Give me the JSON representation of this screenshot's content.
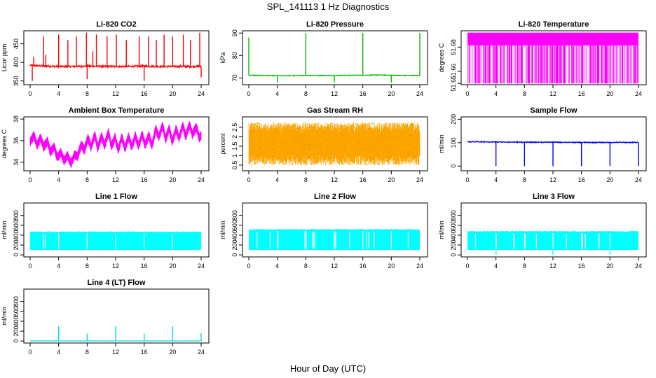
{
  "figure": {
    "title": "SPL_141113  1 Hz Diagnostics",
    "xlabel": "Hour of Day (UTC)"
  },
  "chart_data": [
    {
      "type": "line",
      "title": "Li-820 CO2",
      "ylabel": "Licor ppm",
      "ylim": [
        340,
        485
      ],
      "yticks": [
        350,
        400,
        450
      ],
      "xlim": [
        0,
        24
      ],
      "xticks": [
        0,
        4,
        8,
        12,
        16,
        20,
        24
      ],
      "color": "#ff0000",
      "style": "line",
      "baseline": 390,
      "noise": 2.5,
      "spikes": [
        [
          0.3,
          350
        ],
        [
          0.5,
          415
        ],
        [
          1.9,
          470
        ],
        [
          2.2,
          420
        ],
        [
          4.0,
          475
        ],
        [
          5.3,
          460
        ],
        [
          6.5,
          470
        ],
        [
          7.9,
          480
        ],
        [
          8.0,
          355
        ],
        [
          8.8,
          430
        ],
        [
          9.3,
          475
        ],
        [
          10.8,
          470
        ],
        [
          12.1,
          475
        ],
        [
          13.5,
          460
        ],
        [
          15.3,
          470
        ],
        [
          16.0,
          350
        ],
        [
          16.6,
          470
        ],
        [
          17.7,
          460
        ],
        [
          18.8,
          475
        ],
        [
          20.0,
          470
        ],
        [
          21.5,
          475
        ],
        [
          22.5,
          460
        ],
        [
          23.8,
          480
        ],
        [
          24.0,
          360
        ]
      ],
      "x": [
        0,
        2,
        4,
        6,
        8,
        10,
        12,
        14,
        16,
        18,
        20,
        22,
        24
      ],
      "y": [
        392,
        390,
        389,
        389,
        390,
        389,
        389,
        389,
        390,
        389,
        389,
        389,
        389
      ]
    },
    {
      "type": "line",
      "title": "Li-820 Pressure",
      "ylabel": "kPa",
      "ylim": [
        67,
        91
      ],
      "yticks": [
        70,
        80,
        90
      ],
      "xlim": [
        0,
        24
      ],
      "xticks": [
        0,
        4,
        8,
        12,
        16,
        20,
        24
      ],
      "color": "#00bb00",
      "style": "line",
      "baseline": 71,
      "noise": 0.15,
      "spikes": [
        [
          0.0,
          88
        ],
        [
          4.0,
          68
        ],
        [
          8.0,
          90
        ],
        [
          12.0,
          68
        ],
        [
          16.0,
          90
        ],
        [
          20.0,
          68
        ],
        [
          24.0,
          90
        ]
      ],
      "x": [
        0,
        2,
        4,
        6,
        8,
        10,
        12,
        14,
        16,
        18,
        20,
        22,
        24
      ],
      "y": [
        71.2,
        71.1,
        71.0,
        71.0,
        71.1,
        71.1,
        71.1,
        71.2,
        71.2,
        71.3,
        71.2,
        71.1,
        71.1
      ]
    },
    {
      "type": "line",
      "title": "Li-820 Temperature",
      "ylabel": "degrees C",
      "ylim": [
        51.649,
        51.6935
      ],
      "yticks": [
        51.65,
        51.66,
        51.68
      ],
      "xlim": [
        0,
        24
      ],
      "xticks": [
        0,
        4,
        8,
        12,
        16,
        20,
        24
      ],
      "color": "#ff00ff",
      "style": "band",
      "band_low": 51.65,
      "band_high": 51.692,
      "solid_from": 51.6815,
      "gap_rate": 0.45,
      "x": [
        0,
        24
      ],
      "y": [
        51.65,
        51.692
      ]
    },
    {
      "type": "line",
      "title": "Ambient Box Temperature",
      "ylabel": "degrees C",
      "ylim": [
        33.2,
        38.2
      ],
      "yticks": [
        34,
        36,
        38
      ],
      "xlim": [
        0,
        24
      ],
      "xticks": [
        0,
        4,
        8,
        12,
        16,
        20,
        24
      ],
      "color": "#ff00ff",
      "style": "sawtooth",
      "sawtooth_period_h": 0.95,
      "x": [
        0,
        1,
        2,
        3,
        4,
        5,
        6,
        7,
        8,
        9,
        10,
        11,
        12,
        13,
        14,
        15,
        16,
        17,
        18,
        19,
        20,
        21,
        22,
        23,
        24
      ],
      "y": [
        36.3,
        36.0,
        35.8,
        35.3,
        34.7,
        34.4,
        34.2,
        35.2,
        35.8,
        36.0,
        35.9,
        36.3,
        35.7,
        35.8,
        35.9,
        36.0,
        36.1,
        36.0,
        36.9,
        36.8,
        36.4,
        36.8,
        37.0,
        37.0,
        36.6
      ],
      "amp": [
        0.8,
        0.8,
        0.8,
        0.8,
        0.7,
        0.7,
        0.6,
        0.6,
        0.9,
        1.2,
        1.1,
        1.0,
        1.2,
        1.1,
        1.0,
        1.0,
        1.0,
        1.0,
        1.2,
        1.2,
        1.0,
        1.2,
        1.0,
        0.9,
        0.9
      ]
    },
    {
      "type": "scatter",
      "title": "Gas Stream RH",
      "ylabel": "percent",
      "ylim": [
        0.2,
        3.05
      ],
      "yticks": [
        0.5,
        1.0,
        1.5,
        2.0,
        2.5
      ],
      "xlim": [
        0,
        24
      ],
      "xticks": [
        0,
        4,
        8,
        12,
        16,
        20,
        24
      ],
      "color": "#d49a00",
      "fill": "#ffa500",
      "style": "noise",
      "band_low": 0.5,
      "band_high": 2.75,
      "core_low": 1.1,
      "core_high": 2.2,
      "x": [
        0,
        24
      ],
      "y": [
        0.5,
        2.75
      ]
    },
    {
      "type": "line",
      "title": "Sample Flow",
      "ylabel": "ml/min",
      "ylim": [
        -20,
        210
      ],
      "yticks": [
        0,
        100,
        200
      ],
      "xlim": [
        0,
        24
      ],
      "xticks": [
        0,
        4,
        8,
        12,
        16,
        20,
        24
      ],
      "color": "#0000ff",
      "style": "line",
      "baseline": 102,
      "noise": 2,
      "spikes": [
        [
          0.0,
          108
        ],
        [
          4.0,
          0
        ],
        [
          8.0,
          0
        ],
        [
          12.0,
          0
        ],
        [
          16.0,
          0
        ],
        [
          20.0,
          0
        ],
        [
          24.0,
          0
        ]
      ],
      "x": [
        0,
        4,
        8,
        12,
        16,
        20,
        24
      ],
      "y": [
        104,
        103,
        102,
        102,
        101,
        101,
        101
      ]
    },
    {
      "type": "line",
      "title": "Line 1 Flow",
      "ylabel": "ml/min",
      "ylim": [
        -40,
        1050
      ],
      "yticks": [
        0,
        200,
        400,
        600,
        800
      ],
      "xlim": [
        0,
        24
      ],
      "xticks": [
        0,
        4,
        8,
        12,
        16,
        20,
        24
      ],
      "color": "#00ffff",
      "style": "band",
      "band_low": 100,
      "band_high": 460,
      "gaps": [
        4.0,
        8.0,
        12.0,
        16.0,
        20.0
      ],
      "gap_rate": 0.01,
      "x": [
        0,
        24
      ],
      "y": [
        100,
        460
      ]
    },
    {
      "type": "line",
      "title": "Line 2 Flow",
      "ylabel": "ml/min",
      "ylim": [
        -40,
        1050
      ],
      "yticks": [
        0,
        200,
        400,
        600,
        800
      ],
      "xlim": [
        0,
        24
      ],
      "xticks": [
        0,
        4,
        8,
        12,
        16,
        20,
        24
      ],
      "color": "#00ffff",
      "style": "band",
      "band_low": 100,
      "band_high": 510,
      "gaps": [
        4.0,
        8.0,
        12.0,
        16.0,
        20.0
      ],
      "gap_rate": 0.08,
      "x": [
        0,
        24
      ],
      "y": [
        100,
        510
      ]
    },
    {
      "type": "line",
      "title": "Line 3 Flow",
      "ylabel": "ml/min",
      "ylim": [
        -40,
        1050
      ],
      "yticks": [
        0,
        200,
        400,
        600,
        800
      ],
      "xlim": [
        0,
        24
      ],
      "xticks": [
        0,
        4,
        8,
        12,
        16,
        20,
        24
      ],
      "color": "#00ffff",
      "style": "band",
      "band_low": 100,
      "band_high": 470,
      "gaps": [
        4.0,
        8.0,
        12.0,
        16.0,
        20.0
      ],
      "dips": [
        4.0,
        12.0,
        20.0
      ],
      "gap_rate": 0.06,
      "x": [
        0,
        24
      ],
      "y": [
        100,
        470
      ]
    },
    {
      "type": "line",
      "title": "Line 4 (LT) Flow",
      "ylabel": "ml/min",
      "ylim": [
        -40,
        1050
      ],
      "yticks": [
        0,
        200,
        400,
        600,
        800
      ],
      "xlim": [
        0,
        24
      ],
      "xticks": [
        0,
        4,
        8,
        12,
        16,
        20,
        24
      ],
      "color": "#00dddd",
      "style": "line",
      "baseline": 2,
      "noise": 1,
      "spikes": [
        [
          4.0,
          300
        ],
        [
          8.0,
          150
        ],
        [
          12.0,
          300
        ],
        [
          16.0,
          150
        ],
        [
          20.0,
          300
        ],
        [
          24.0,
          160
        ]
      ],
      "x": [
        0,
        24
      ],
      "y": [
        2,
        2
      ]
    }
  ]
}
